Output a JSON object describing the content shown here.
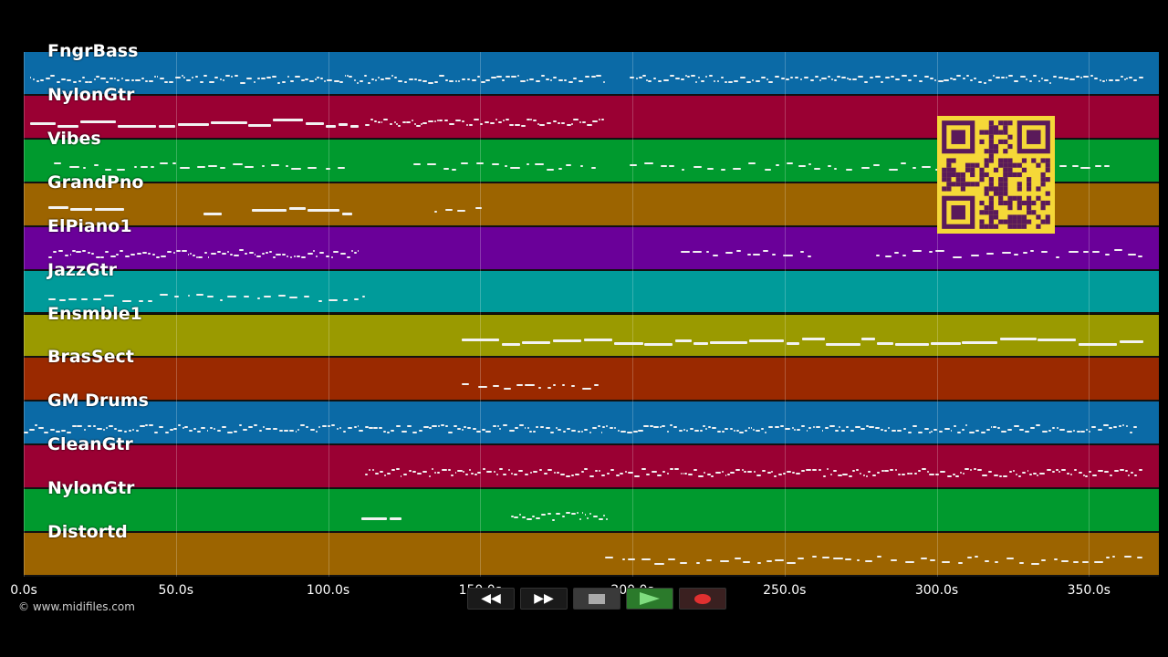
{
  "tracks": [
    {
      "name": "FngrBass",
      "color": "#0b6aa6"
    },
    {
      "name": "NylonGtr",
      "color": "#9a0033"
    },
    {
      "name": "Vibes",
      "color": "#009a2e"
    },
    {
      "name": "GrandPno",
      "color": "#9c6400"
    },
    {
      "name": "ElPiano1",
      "color": "#6a0099"
    },
    {
      "name": "JazzGtr",
      "color": "#009b9a"
    },
    {
      "name": "Ensmble1",
      "color": "#9a9a00"
    },
    {
      "name": "BrasSect",
      "color": "#9a2900"
    },
    {
      "name": "GM Drums",
      "color": "#0b6aa6"
    },
    {
      "name": "CleanGtr",
      "color": "#9a0033"
    },
    {
      "name": "NylonGtr",
      "color": "#009a2e"
    },
    {
      "name": "Distortd",
      "color": "#9c6400"
    }
  ],
  "time_axis": {
    "unit": "s",
    "min": 0,
    "max": 373,
    "ticks": [
      "0.0s",
      "50.0s",
      "100.0s",
      "150.0s",
      "200.0s",
      "250.0s",
      "300.0s",
      "350.0s"
    ],
    "tick_values": [
      0,
      50,
      100,
      150,
      200,
      250,
      300,
      350
    ]
  },
  "copyright": "© www.midifiles.com",
  "transport": {
    "rewind_icon": "rewind-icon",
    "fast_forward_icon": "fast-forward-icon",
    "stop_icon": "stop-icon",
    "play_icon": "play-icon",
    "record_icon": "record-icon",
    "play_color": "#2b7a2b",
    "record_color": "#e03030"
  },
  "qr_code": {
    "color": "#f5d838",
    "module_color": "#5a1a5a"
  },
  "note_regions": [
    [
      [
        2,
        191,
        "dense"
      ],
      [
        199,
        368,
        "dense"
      ]
    ],
    [
      [
        2,
        110,
        "long"
      ],
      [
        112,
        191,
        "dense"
      ]
    ],
    [
      [
        10,
        107,
        "sparse"
      ],
      [
        128,
        188,
        "sparse"
      ],
      [
        199,
        357,
        "sparse"
      ]
    ],
    [
      [
        8,
        33,
        "long"
      ],
      [
        59,
        65,
        "long"
      ],
      [
        75,
        108,
        "long"
      ],
      [
        135,
        152,
        "sparse"
      ]
    ],
    [
      [
        8,
        110,
        "dense"
      ],
      [
        216,
        260,
        "sparse"
      ],
      [
        280,
        368,
        "sparse"
      ]
    ],
    [
      [
        8,
        112,
        "sparse"
      ]
    ],
    [
      [
        144,
        368,
        "long"
      ]
    ],
    [
      [
        144,
        189,
        "sparse"
      ]
    ],
    [
      [
        0,
        110,
        "dense"
      ],
      [
        110,
        190,
        "dense"
      ],
      [
        190,
        366,
        "dense"
      ]
    ],
    [
      [
        112,
        368,
        "dense"
      ]
    ],
    [
      [
        111,
        124,
        "long"
      ],
      [
        160,
        192,
        "dense"
      ]
    ],
    [
      [
        191,
        368,
        "sparse"
      ]
    ]
  ]
}
